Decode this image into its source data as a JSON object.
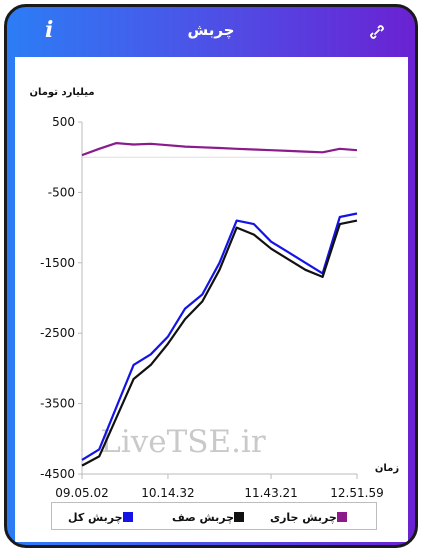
{
  "header": {
    "title": "چربش",
    "info_icon": "info-icon",
    "link_icon": "link-icon"
  },
  "colors": {
    "total": "#1414e6",
    "queue": "#111111",
    "current": "#8b1a8b"
  },
  "chart_data": {
    "type": "line",
    "ylabel": "میلیارد تومان",
    "xlabel": "زمان",
    "ylim": [
      -4500,
      500
    ],
    "yticks": [
      500,
      -500,
      -1500,
      -2500,
      -3500,
      -4500
    ],
    "ytick_labels": [
      "500",
      "-500",
      "-1500",
      "-2500",
      "-3500",
      "-4500"
    ],
    "x": [
      "09.05.02",
      "09.15",
      "09.30",
      "09.45",
      "10.00",
      "10.14.32",
      "10.30",
      "10.45",
      "11.00",
      "11.15",
      "11.30",
      "11.43.21",
      "12.00",
      "12.15",
      "12.30",
      "12.45",
      "12.51.59"
    ],
    "xtick_labels": [
      "09.05.02",
      "10.14.32",
      "11.43.21",
      "12.51.59"
    ],
    "xtick_index": [
      0,
      5,
      11,
      16
    ],
    "legend_position": "bottom",
    "watermark": "LiveTSE.ir",
    "series": [
      {
        "name": "چربش کل",
        "color_key": "total",
        "values": [
          -4300,
          -4150,
          -3550,
          -2950,
          -2800,
          -2550,
          -2150,
          -1950,
          -1500,
          -900,
          -950,
          -1200,
          -1350,
          -1500,
          -1650,
          -850,
          -800
        ]
      },
      {
        "name": "چربش صف",
        "color_key": "queue",
        "values": [
          -4380,
          -4250,
          -3700,
          -3150,
          -2950,
          -2650,
          -2300,
          -2050,
          -1600,
          -1000,
          -1100,
          -1300,
          -1450,
          -1600,
          -1700,
          -950,
          -900
        ]
      },
      {
        "name": "چربش جاری",
        "color_key": "current",
        "values": [
          30,
          120,
          200,
          180,
          190,
          170,
          150,
          140,
          130,
          120,
          110,
          100,
          90,
          80,
          70,
          120,
          100
        ]
      }
    ]
  },
  "legend": [
    {
      "label": "چربش جاری",
      "color_key": "current"
    },
    {
      "label": "چربش صف",
      "color_key": "queue"
    },
    {
      "label": "چربش کل",
      "color_key": "total"
    }
  ]
}
